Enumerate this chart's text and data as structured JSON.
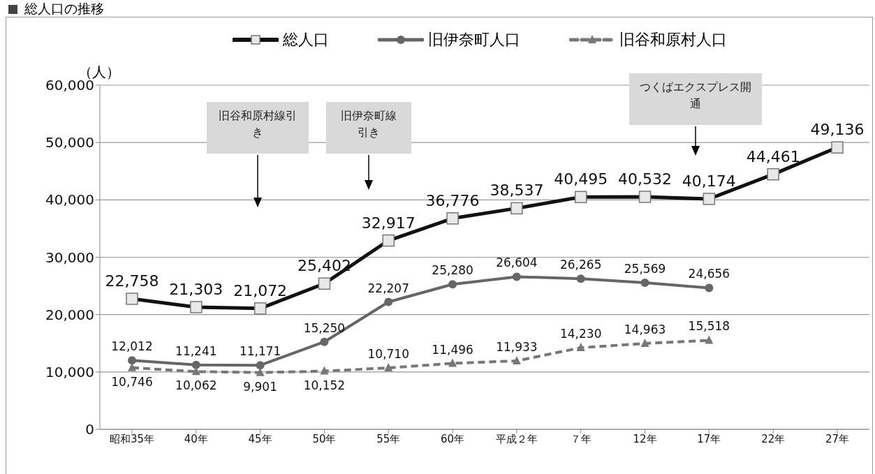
{
  "chart_data": {
    "type": "line",
    "title": "総人口の推移",
    "ylabel": "（人）",
    "categories": [
      "昭和35年",
      "40年",
      "45年",
      "50年",
      "55年",
      "60年",
      "平成２年",
      "７年",
      "12年",
      "17年",
      "22年",
      "27年"
    ],
    "series": [
      {
        "name": "総人口",
        "color": "#111111",
        "marker": "square",
        "line_style": "solid",
        "values": [
          22758,
          21303,
          21072,
          25402,
          32917,
          36776,
          38537,
          40495,
          40532,
          40174,
          44461,
          49136
        ],
        "value_labels": [
          "22,758",
          "21,303",
          "21,072",
          "25,402",
          "32,917",
          "36,776",
          "38,537",
          "40,495",
          "40,532",
          "40,174",
          "44,461",
          "49,136"
        ]
      },
      {
        "name": "旧伊奈町人口",
        "color": "#666666",
        "marker": "circle",
        "line_style": "solid",
        "values": [
          12012,
          11241,
          11171,
          15250,
          22207,
          25280,
          26604,
          26265,
          25569,
          24656,
          null,
          null
        ],
        "value_labels": [
          "12,012",
          "11,241",
          "11,171",
          "15,250",
          "22,207",
          "25,280",
          "26,604",
          "26,265",
          "25,569",
          "24,656",
          null,
          null
        ]
      },
      {
        "name": "旧谷和原村人口",
        "color": "#777777",
        "marker": "triangle",
        "line_style": "dashed",
        "values": [
          10746,
          10062,
          9901,
          10152,
          10710,
          11496,
          11933,
          14230,
          14963,
          15518,
          null,
          null
        ],
        "value_labels": [
          "10,746",
          "10,062",
          "9,901",
          "10,152",
          "10,710",
          "11,496",
          "11,933",
          "14,230",
          "14,963",
          "15,518",
          null,
          null
        ]
      }
    ],
    "ylim": [
      0,
      60000
    ],
    "yticks": [
      0,
      {
        "value": 10000,
        "label": "10,000"
      },
      {
        "value": 20000,
        "label": "20,000"
      },
      {
        "value": 30000,
        "label": "30,000"
      },
      {
        "value": 40000,
        "label": "40,000"
      },
      {
        "value": 50000,
        "label": "50,000"
      },
      {
        "value": 60000,
        "label": "60,000"
      }
    ],
    "grid": "y",
    "legend": "top",
    "annotations": [
      "旧谷和原村線引き",
      "旧伊奈町線引き",
      "つくばエクスプレス開通"
    ]
  }
}
